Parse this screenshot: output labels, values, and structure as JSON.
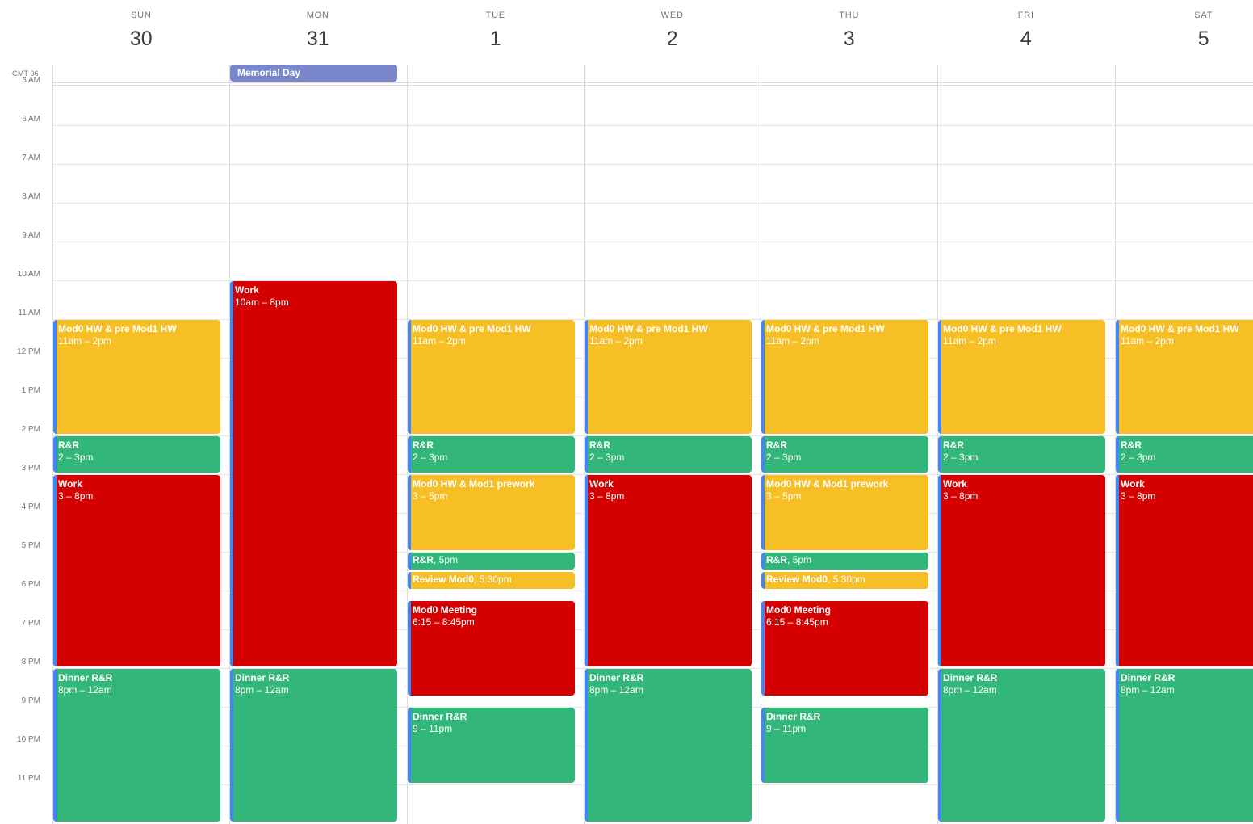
{
  "timezone": "GMT-06",
  "days": [
    {
      "dow": "SUN",
      "num": "30"
    },
    {
      "dow": "MON",
      "num": "31"
    },
    {
      "dow": "TUE",
      "num": "1"
    },
    {
      "dow": "WED",
      "num": "2"
    },
    {
      "dow": "THU",
      "num": "3"
    },
    {
      "dow": "FRI",
      "num": "4"
    },
    {
      "dow": "SAT",
      "num": "5"
    }
  ],
  "hours": [
    "5 AM",
    "6 AM",
    "7 AM",
    "8 AM",
    "9 AM",
    "10 AM",
    "11 AM",
    "12 PM",
    "1 PM",
    "2 PM",
    "3 PM",
    "4 PM",
    "5 PM",
    "6 PM",
    "7 PM",
    "8 PM",
    "9 PM",
    "10 PM",
    "11 PM"
  ],
  "all_day": [
    {
      "day": 1,
      "title": "Memorial Day"
    }
  ],
  "events": [
    {
      "day": 0,
      "start": 11,
      "end": 14,
      "title": "Mod0 HW & pre Mod1 HW",
      "time": "11am – 2pm",
      "color": "yellow"
    },
    {
      "day": 0,
      "start": 14,
      "end": 15,
      "title": "R&R",
      "time": "2 – 3pm",
      "color": "green"
    },
    {
      "day": 0,
      "start": 15,
      "end": 20,
      "title": "Work",
      "time": "3 – 8pm",
      "color": "red"
    },
    {
      "day": 0,
      "start": 20,
      "end": 24,
      "title": "Dinner R&R",
      "time": "8pm – 12am",
      "color": "green"
    },
    {
      "day": 1,
      "start": 10,
      "end": 20,
      "title": "Work",
      "time": "10am – 8pm",
      "color": "red"
    },
    {
      "day": 1,
      "start": 20,
      "end": 24,
      "title": "Dinner R&R",
      "time": "8pm – 12am",
      "color": "green"
    },
    {
      "day": 2,
      "start": 11,
      "end": 14,
      "title": "Mod0 HW & pre Mod1 HW",
      "time": "11am – 2pm",
      "color": "yellow"
    },
    {
      "day": 2,
      "start": 14,
      "end": 15,
      "title": "R&R",
      "time": "2 – 3pm",
      "color": "green"
    },
    {
      "day": 2,
      "start": 15,
      "end": 17,
      "title": "Mod0 HW & Mod1 prework",
      "time": "3 – 5pm",
      "color": "yellow"
    },
    {
      "day": 2,
      "start": 17,
      "end": 17.5,
      "title": "R&R",
      "time": "5pm",
      "color": "green",
      "one": true
    },
    {
      "day": 2,
      "start": 17.5,
      "end": 18,
      "title": "Review Mod0",
      "time": "5:30pm",
      "color": "yellow",
      "one": true
    },
    {
      "day": 2,
      "start": 18.25,
      "end": 20.75,
      "title": "Mod0 Meeting",
      "time": "6:15 – 8:45pm",
      "color": "red"
    },
    {
      "day": 2,
      "start": 21,
      "end": 23,
      "title": "Dinner R&R",
      "time": "9 – 11pm",
      "color": "green"
    },
    {
      "day": 3,
      "start": 11,
      "end": 14,
      "title": "Mod0 HW & pre Mod1 HW",
      "time": "11am – 2pm",
      "color": "yellow"
    },
    {
      "day": 3,
      "start": 14,
      "end": 15,
      "title": "R&R",
      "time": "2 – 3pm",
      "color": "green"
    },
    {
      "day": 3,
      "start": 15,
      "end": 20,
      "title": "Work",
      "time": "3 – 8pm",
      "color": "red"
    },
    {
      "day": 3,
      "start": 20,
      "end": 24,
      "title": "Dinner R&R",
      "time": "8pm – 12am",
      "color": "green"
    },
    {
      "day": 4,
      "start": 11,
      "end": 14,
      "title": "Mod0 HW & pre Mod1 HW",
      "time": "11am – 2pm",
      "color": "yellow"
    },
    {
      "day": 4,
      "start": 14,
      "end": 15,
      "title": "R&R",
      "time": "2 – 3pm",
      "color": "green"
    },
    {
      "day": 4,
      "start": 15,
      "end": 17,
      "title": "Mod0 HW & Mod1 prework",
      "time": "3 – 5pm",
      "color": "yellow"
    },
    {
      "day": 4,
      "start": 17,
      "end": 17.5,
      "title": "R&R",
      "time": "5pm",
      "color": "green",
      "one": true
    },
    {
      "day": 4,
      "start": 17.5,
      "end": 18,
      "title": "Review Mod0",
      "time": "5:30pm",
      "color": "yellow",
      "one": true
    },
    {
      "day": 4,
      "start": 18.25,
      "end": 20.75,
      "title": "Mod0 Meeting",
      "time": "6:15 – 8:45pm",
      "color": "red"
    },
    {
      "day": 4,
      "start": 21,
      "end": 23,
      "title": "Dinner R&R",
      "time": "9 – 11pm",
      "color": "green"
    },
    {
      "day": 5,
      "start": 11,
      "end": 14,
      "title": "Mod0 HW & pre Mod1 HW",
      "time": "11am – 2pm",
      "color": "yellow"
    },
    {
      "day": 5,
      "start": 14,
      "end": 15,
      "title": "R&R",
      "time": "2 – 3pm",
      "color": "green"
    },
    {
      "day": 5,
      "start": 15,
      "end": 20,
      "title": "Work",
      "time": "3 – 8pm",
      "color": "red"
    },
    {
      "day": 5,
      "start": 20,
      "end": 24,
      "title": "Dinner R&R",
      "time": "8pm – 12am",
      "color": "green"
    },
    {
      "day": 6,
      "start": 11,
      "end": 14,
      "title": "Mod0 HW & pre Mod1 HW",
      "time": "11am – 2pm",
      "color": "yellow"
    },
    {
      "day": 6,
      "start": 14,
      "end": 15,
      "title": "R&R",
      "time": "2 – 3pm",
      "color": "green"
    },
    {
      "day": 6,
      "start": 15,
      "end": 20,
      "title": "Work",
      "time": "3 – 8pm",
      "color": "red"
    },
    {
      "day": 6,
      "start": 20,
      "end": 24,
      "title": "Dinner R&R",
      "time": "8pm – 12am",
      "color": "green"
    }
  ]
}
